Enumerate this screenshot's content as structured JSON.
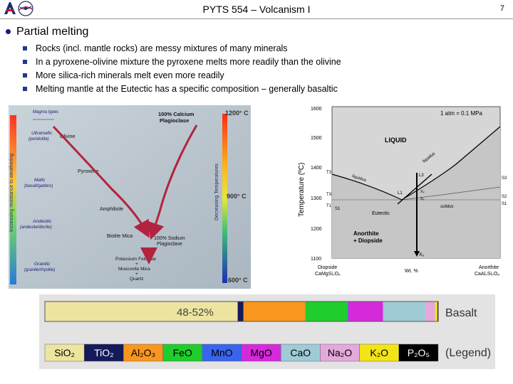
{
  "header": {
    "title": "PYTS 554 – Volcanism I",
    "page_number": "7"
  },
  "heading": "Partial melting",
  "bullets": [
    "Rocks (incl. mantle rocks) are messy mixtures of many minerals",
    "In a pyroxene-olivine mixture the pyroxene melts more readily than the olivine",
    "More silica-rich minerals melt even more readily",
    "Melting mantle at the Eutectic has a specific composition – generally basaltic"
  ],
  "bowen": {
    "magma_types": "Magma types",
    "left_axis": "Increasing resistance to weathering",
    "right_axis": "Decreasing Temperatures",
    "temp_top": "1200° C",
    "temp_mid": "900° C",
    "temp_bot": "600° C",
    "rock_ultramafic": "Ultramafic",
    "rock_ultramafic_sub": "(peridotite)",
    "rock_mafic": "Mafic",
    "rock_mafic_sub": "(basalt/gabbro)",
    "rock_intermediate": "Andesitic",
    "rock_intermediate_sub": "(andesite/diorite)",
    "rock_felsic": "Granitic",
    "rock_felsic_sub": "(granite/rhyolite)",
    "min_olivine": "Olivine",
    "min_pyroxene": "Pyroxene",
    "min_amphibole": "Amphibole",
    "min_biotite": "Biotite Mica",
    "min_ca_plag_1": "100% Calcium",
    "min_ca_plag_2": "Plagioclase",
    "min_na_plag_1": "100% Sodium",
    "min_na_plag_2": "Plagioclase",
    "min_final_1": "Potassium Feldspar",
    "min_final_2": "+",
    "min_final_3": "Muscovite Mica",
    "min_final_4": "+",
    "min_final_5": "Quartz"
  },
  "phase": {
    "y_axis_label": "Temperature (ºC)",
    "y_ticks": [
      "1600",
      "1500",
      "1400",
      "1300",
      "1200",
      "1100"
    ],
    "pressure": "1 atm = 0.1 MPa",
    "liquid": "LIQUID",
    "liquidus": "liquidus",
    "solidus": "solidus",
    "eutectic": "Eutectic",
    "solid_1": "Anorthite",
    "solid_2": "+ Diopside",
    "x_left_1": "Diopside",
    "x_left_2": "CaMgSi₂O₆",
    "x_mid": "Wt. %",
    "x_right_1": "Anorthite",
    "x_right_2": "CaAl₂Si₂O₈",
    "t3": "T3",
    "tx": "TX",
    "t1": "T1",
    "s1": "S1",
    "s2": "S2",
    "s3": "S3",
    "l1": "L1",
    "l3": "L3",
    "xo": "X₀",
    "x1": "X₁",
    "x2": "X₂"
  },
  "bars": {
    "basalt_pct": "48-52%",
    "basalt_label": "Basalt",
    "legend_label": "(Legend)",
    "oxides": [
      {
        "name": "SiO₂",
        "color": "#ede4a0",
        "text": "#000000"
      },
      {
        "name": "TiO₂",
        "color": "#141a5a",
        "text": "#ffffff"
      },
      {
        "name": "Al₂O₃",
        "color": "#f9961e",
        "text": "#000000"
      },
      {
        "name": "FeO",
        "color": "#1fcd2c",
        "text": "#000000"
      },
      {
        "name": "MnO",
        "color": "#3a64ee",
        "text": "#000000"
      },
      {
        "name": "MgO",
        "color": "#d52ad9",
        "text": "#000000"
      },
      {
        "name": "CaO",
        "color": "#9ecbd6",
        "text": "#000000"
      },
      {
        "name": "Na₂O",
        "color": "#e5a8dc",
        "text": "#000000"
      },
      {
        "name": "K₂O",
        "color": "#f2e416",
        "text": "#000000"
      },
      {
        "name": "P₂O₅",
        "color": "#000000",
        "text": "#ffffff"
      }
    ],
    "basalt_fractions": [
      0.5,
      0.015,
      0.16,
      0.11,
      0.002,
      0.09,
      0.11,
      0.025,
      0.006,
      0.002
    ]
  }
}
